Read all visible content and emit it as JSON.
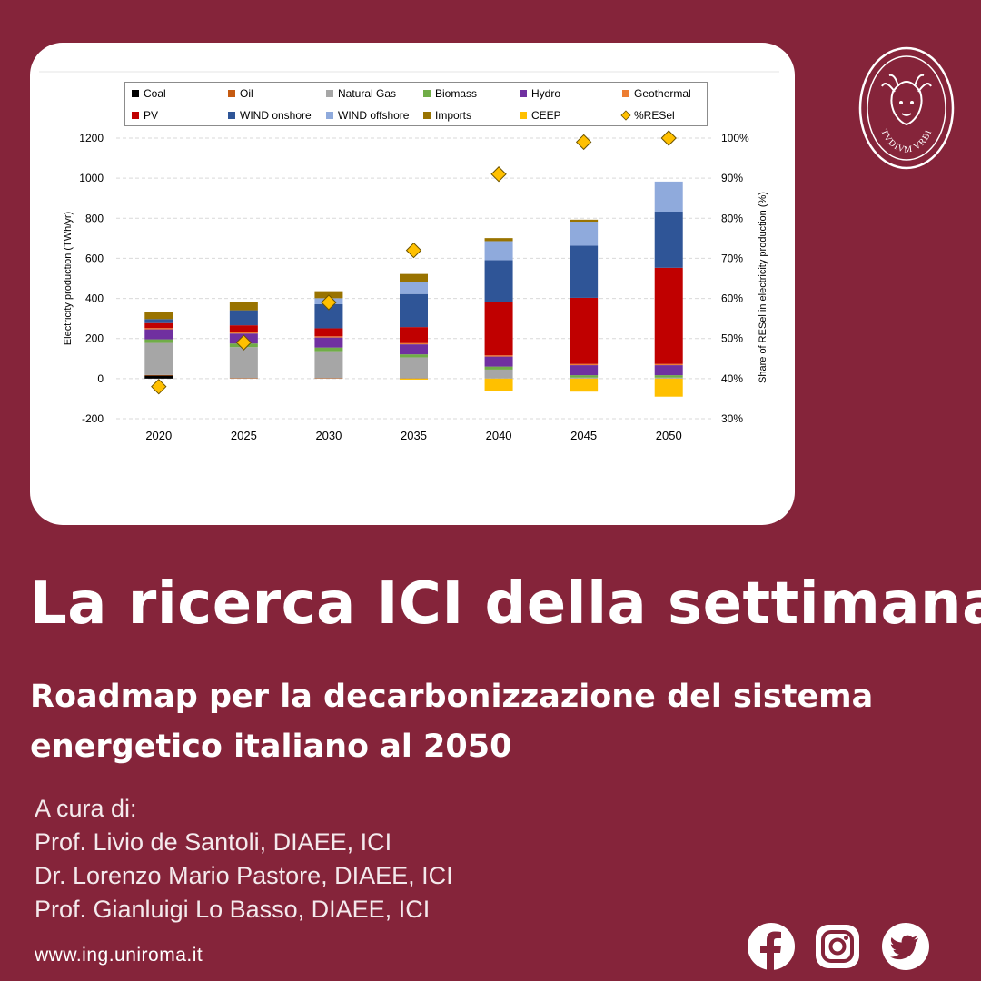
{
  "chart_data": {
    "type": "bar",
    "stacked": true,
    "categories": [
      "2020",
      "2025",
      "2030",
      "2035",
      "2040",
      "2045",
      "2050"
    ],
    "ylabel": "Electricity production (TWh/yr)",
    "y2label": "Share of RESel in electricity production (%)",
    "ylim": [
      -200,
      1200
    ],
    "y_ticks": [
      "-200",
      "0",
      "200",
      "400",
      "600",
      "800",
      "1000",
      "1200"
    ],
    "y2lim": [
      30,
      100
    ],
    "y2_ticks": [
      "30%",
      "40%",
      "50%",
      "60%",
      "70%",
      "80%",
      "90%",
      "100%"
    ],
    "grid": true,
    "legend_position": "top",
    "series": [
      {
        "name": "Coal",
        "color": "#000000",
        "values": [
          15,
          0,
          0,
          0,
          0,
          0,
          0
        ]
      },
      {
        "name": "Oil",
        "color": "#c55a11",
        "values": [
          3,
          2,
          2,
          1,
          0,
          0,
          0
        ]
      },
      {
        "name": "Natural Gas",
        "color": "#a6a6a6",
        "values": [
          160,
          155,
          135,
          105,
          45,
          5,
          5
        ]
      },
      {
        "name": "Biomass",
        "color": "#70ad47",
        "values": [
          18,
          18,
          18,
          15,
          15,
          12,
          12
        ]
      },
      {
        "name": "Hydro",
        "color": "#7030a0",
        "values": [
          50,
          50,
          50,
          50,
          50,
          50,
          50
        ]
      },
      {
        "name": "Geothermal",
        "color": "#ed7d31",
        "values": [
          6,
          6,
          6,
          6,
          6,
          6,
          6
        ]
      },
      {
        "name": "PV",
        "color": "#c00000",
        "values": [
          25,
          35,
          40,
          80,
          265,
          330,
          480
        ]
      },
      {
        "name": "WIND onshore",
        "color": "#2f5597",
        "values": [
          20,
          75,
          120,
          165,
          210,
          260,
          280
        ]
      },
      {
        "name": "WIND offshore",
        "color": "#8faadc",
        "values": [
          0,
          0,
          30,
          60,
          95,
          120,
          150
        ]
      },
      {
        "name": "Imports",
        "color": "#997300",
        "values": [
          35,
          40,
          35,
          40,
          15,
          10,
          0
        ]
      },
      {
        "name": "CEEP",
        "color": "#ffc000",
        "values": [
          0,
          0,
          0,
          -5,
          -60,
          -65,
          -90
        ]
      }
    ],
    "line_series": {
      "name": "%RESel",
      "color": "#ffc000",
      "axis": "right",
      "values": [
        38,
        49,
        59,
        72,
        91,
        99,
        100
      ]
    }
  },
  "text": {
    "headline": "La ricerca ICI della settimana",
    "subtitle": "Roadmap per la decarbonizzazione del sistema energetico italiano al 2050",
    "credits": [
      "A cura di:",
      "Prof. Livio de Santoli, DIAEE, ICI",
      "Dr. Lorenzo Mario Pastore, DIAEE, ICI",
      "Prof. Gianluigi Lo Basso, DIAEE, ICI"
    ],
    "website": "www.ing.uniroma.it"
  },
  "logo": {
    "text": "STVDIVM VRBIS",
    "icon": "sapienza-seal-icon"
  },
  "social": [
    {
      "icon": "facebook-icon",
      "name": "Facebook"
    },
    {
      "icon": "instagram-icon",
      "name": "Instagram"
    },
    {
      "icon": "twitter-icon",
      "name": "Twitter"
    }
  ],
  "colors": {
    "background": "#85243a",
    "card": "#ffffff",
    "grid": "#d9d9d9"
  }
}
